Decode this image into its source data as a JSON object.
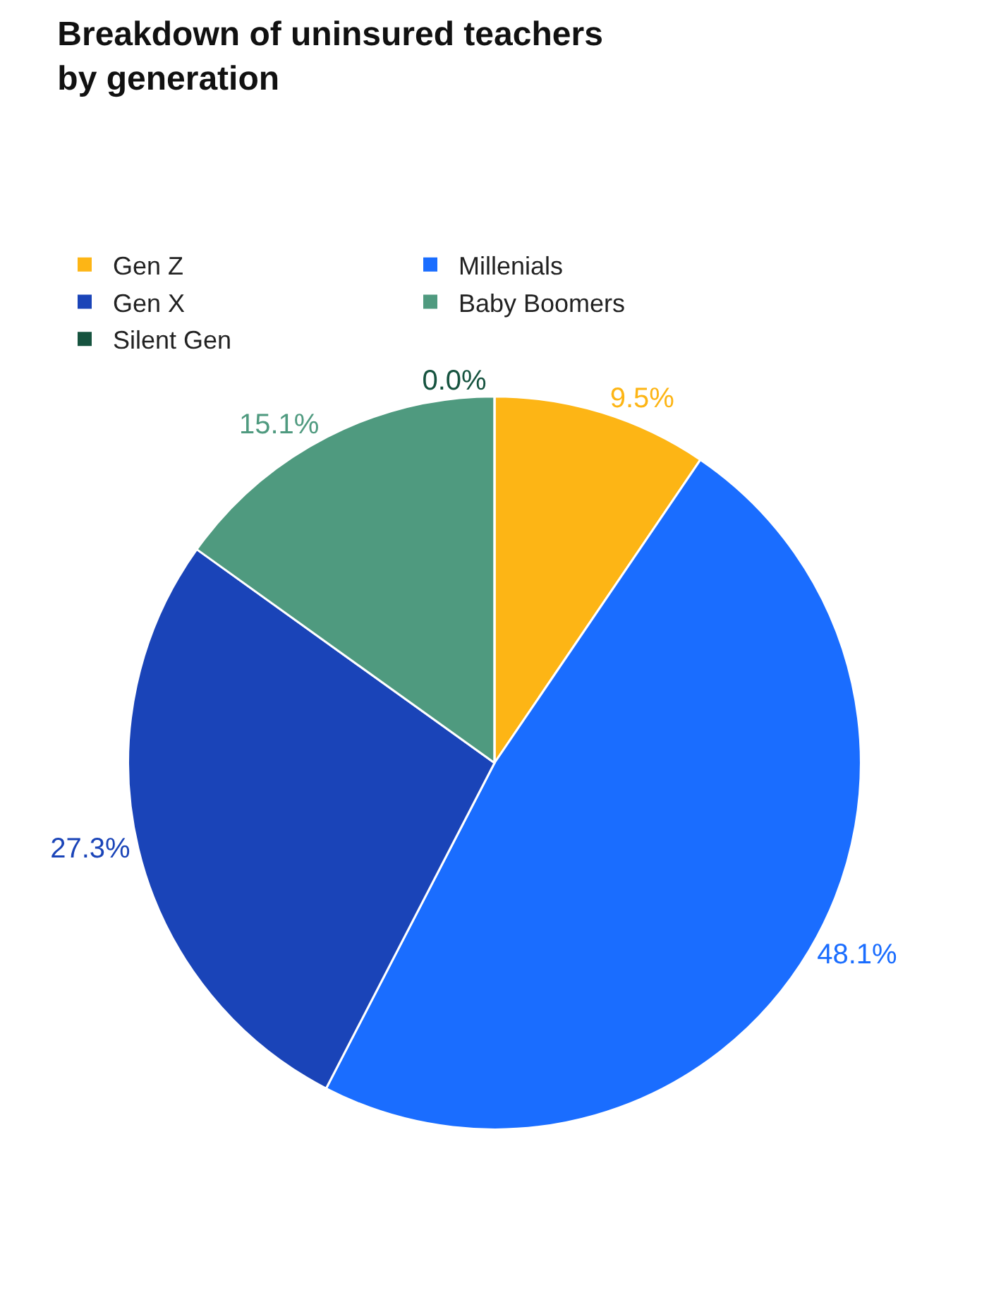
{
  "chart_data": {
    "type": "pie",
    "title": "Breakdown of uninsured teachers\nby generation",
    "categories": [
      "Gen Z",
      "Millenials",
      "Gen X",
      "Baby Boomers",
      "Silent Gen"
    ],
    "values": [
      9.5,
      48.1,
      27.3,
      15.1,
      0
    ],
    "value_labels": [
      "9.5%",
      "48.1%",
      "27.3%",
      "15.1%",
      "0.0%"
    ],
    "colors": [
      "#fdb515",
      "#1a6dff",
      "#1a44b8",
      "#4f9a7f",
      "#16533f"
    ],
    "legend": "top"
  }
}
